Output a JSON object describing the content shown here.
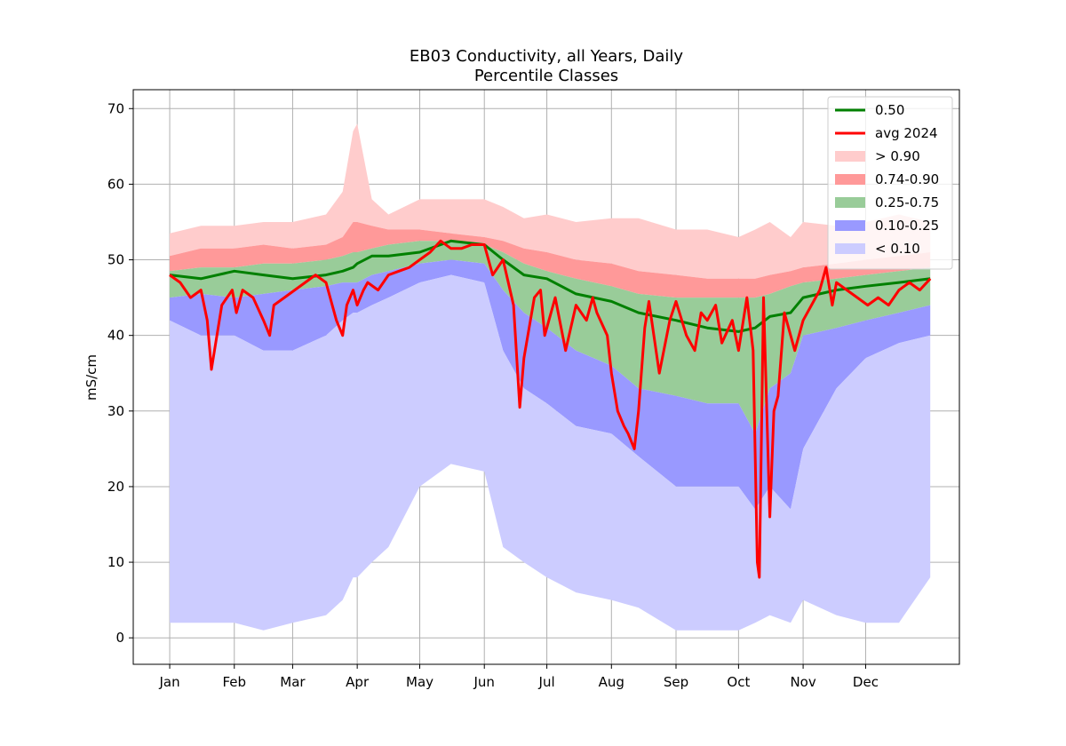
{
  "chart_data": {
    "type": "area",
    "title": "EB03 Conductivity, all Years, Daily",
    "subtitle": "Percentile Classes",
    "xlabel": "",
    "ylabel": "mS/cm",
    "grid": true,
    "legend_position": "top-right",
    "ylim": [
      -3.5,
      72.5
    ],
    "yticks": [
      0,
      10,
      20,
      30,
      40,
      50,
      60,
      70
    ],
    "xlim": [
      -17.5,
      379
    ],
    "month_ticks": [
      {
        "day": 0,
        "label": "Jan"
      },
      {
        "day": 31,
        "label": "Feb"
      },
      {
        "day": 59,
        "label": "Mar"
      },
      {
        "day": 90,
        "label": "Apr"
      },
      {
        "day": 120,
        "label": "May"
      },
      {
        "day": 151,
        "label": "Jun"
      },
      {
        "day": 181,
        "label": "Jul"
      },
      {
        "day": 212,
        "label": "Aug"
      },
      {
        "day": 243,
        "label": "Sep"
      },
      {
        "day": 273,
        "label": "Oct"
      },
      {
        "day": 304,
        "label": "Nov"
      },
      {
        "day": 334,
        "label": "Dec"
      }
    ],
    "x_day_of_year": [
      0,
      15,
      31,
      45,
      59,
      75,
      83,
      88,
      90,
      97,
      105,
      120,
      135,
      151,
      160,
      170,
      181,
      195,
      212,
      225,
      243,
      258,
      273,
      281,
      288,
      298,
      304,
      320,
      334,
      350,
      365
    ],
    "bands": [
      {
        "name": "> 0.90",
        "color": "#ffcccc",
        "lower": [
          50.5,
          51.5,
          51.5,
          52,
          51.5,
          52,
          53,
          55,
          55,
          54.5,
          54,
          54,
          53.5,
          53,
          52.5,
          51.5,
          51,
          50,
          49.5,
          48.5,
          48,
          47.5,
          47.5,
          47.5,
          48,
          48.5,
          49,
          49.5,
          50,
          50.5,
          51
        ],
        "upper": [
          53.5,
          54.5,
          54.5,
          55,
          55,
          56,
          59,
          67,
          68,
          58,
          56,
          58,
          58,
          58,
          57,
          55.5,
          56,
          55,
          55.5,
          55.5,
          54,
          54,
          53,
          54,
          55,
          53,
          55,
          54.5,
          55,
          56,
          55
        ]
      },
      {
        "name": "0.74-0.90",
        "color": "#ff9999",
        "lower": [
          48.5,
          49,
          49,
          49.5,
          49.5,
          50,
          50.5,
          51,
          51,
          51.5,
          52,
          52.5,
          52.5,
          52,
          51,
          49.5,
          48.5,
          47.5,
          46.5,
          45.5,
          45,
          45,
          45,
          45,
          45.5,
          46.5,
          47,
          47.5,
          48,
          48.5,
          49
        ],
        "upper": [
          50.5,
          51.5,
          51.5,
          52,
          51.5,
          52,
          53,
          55,
          55,
          54.5,
          54,
          54,
          53.5,
          53,
          52.5,
          51.5,
          51,
          50,
          49.5,
          48.5,
          48,
          47.5,
          47.5,
          47.5,
          48,
          48.5,
          49,
          49.5,
          50,
          50.5,
          51
        ]
      },
      {
        "name": "0.25-0.75",
        "color": "#99cc99",
        "lower": [
          45,
          45.5,
          45,
          45.5,
          46,
          46.5,
          47,
          47,
          47,
          48,
          48.5,
          49.5,
          50,
          49.5,
          46,
          43,
          41,
          38,
          36,
          33,
          32,
          31,
          31,
          27,
          33,
          35,
          40,
          41,
          42,
          43,
          44
        ],
        "upper": [
          48.5,
          49,
          49,
          49.5,
          49.5,
          50,
          50.5,
          51,
          51,
          51.5,
          52,
          52.5,
          52.5,
          52,
          51,
          49.5,
          48.5,
          47.5,
          46.5,
          45.5,
          45,
          45,
          45,
          45,
          45.5,
          46.5,
          47,
          47.5,
          48,
          48.5,
          49
        ]
      },
      {
        "name": "0.10-0.25",
        "color": "#9999ff",
        "lower": [
          42,
          40,
          40,
          38,
          38,
          40,
          42,
          43,
          43,
          44,
          45,
          47,
          48,
          47,
          38,
          33,
          31,
          28,
          27,
          24,
          20,
          20,
          20,
          17,
          20,
          17,
          25,
          33,
          37,
          39,
          40
        ],
        "upper": [
          45,
          45.5,
          45,
          45.5,
          46,
          46.5,
          47,
          47,
          47,
          48,
          48.5,
          49.5,
          50,
          49.5,
          46,
          43,
          41,
          38,
          36,
          33,
          32,
          31,
          31,
          27,
          33,
          35,
          40,
          41,
          42,
          43,
          44
        ]
      },
      {
        "name": "< 0.10",
        "color": "#ccccff",
        "lower": [
          2,
          2,
          2,
          1,
          2,
          3,
          5,
          8,
          8,
          10,
          12,
          20,
          23,
          22,
          12,
          10,
          8,
          6,
          5,
          4,
          1,
          1,
          1,
          2,
          3,
          2,
          5,
          3,
          2,
          2,
          8
        ],
        "upper": [
          42,
          40,
          40,
          38,
          38,
          40,
          42,
          43,
          43,
          44,
          45,
          47,
          48,
          47,
          38,
          33,
          31,
          28,
          27,
          24,
          20,
          20,
          20,
          17,
          20,
          17,
          25,
          33,
          37,
          39,
          40
        ]
      }
    ],
    "series": [
      {
        "name": "0.50",
        "color": "#008000",
        "values": [
          48,
          47.5,
          48.5,
          48,
          47.5,
          48,
          48.5,
          49,
          49.5,
          50.5,
          50.5,
          51,
          52.5,
          52,
          50,
          48,
          47.5,
          45.5,
          44.5,
          43,
          42,
          41,
          40.5,
          41,
          42.5,
          43,
          45,
          46,
          46.5,
          47,
          47.5
        ]
      },
      {
        "name": "avg 2024",
        "color": "#ff0000",
        "x": [
          0,
          5,
          10,
          15,
          18,
          20,
          25,
          30,
          32,
          35,
          40,
          45,
          48,
          50,
          55,
          60,
          65,
          70,
          75,
          80,
          83,
          85,
          88,
          90,
          93,
          95,
          100,
          105,
          110,
          115,
          120,
          125,
          130,
          135,
          140,
          145,
          151,
          155,
          160,
          165,
          168,
          170,
          175,
          178,
          180,
          185,
          190,
          195,
          200,
          203,
          205,
          210,
          212,
          215,
          218,
          220,
          223,
          225,
          228,
          230,
          235,
          240,
          243,
          248,
          252,
          255,
          258,
          262,
          265,
          270,
          273,
          277,
          280,
          282,
          283,
          285,
          288,
          290,
          292,
          295,
          300,
          304,
          308,
          312,
          315,
          318,
          320,
          325,
          330,
          335,
          340,
          345,
          350,
          355,
          360,
          365
        ],
        "values": [
          48,
          47,
          45,
          46,
          42,
          35.5,
          44,
          46,
          43,
          46,
          45,
          42,
          40,
          44,
          45,
          46,
          47,
          48,
          47,
          42,
          40,
          44,
          46,
          44,
          46,
          47,
          46,
          48,
          48.5,
          49,
          50,
          51,
          52.5,
          51.5,
          51.5,
          52,
          52,
          48,
          50,
          44,
          30.5,
          37,
          45,
          46,
          40,
          45,
          38,
          44,
          42,
          45,
          43,
          40,
          35,
          30,
          28,
          27,
          25,
          30,
          41,
          44.5,
          35,
          42,
          44.5,
          40,
          38,
          43,
          42,
          44,
          39,
          42,
          38,
          45,
          38,
          10,
          8,
          45,
          16,
          30,
          32,
          43,
          38,
          42,
          44,
          46,
          49,
          44,
          47,
          46,
          45,
          44,
          45,
          44,
          46,
          47,
          46,
          47.5
        ]
      }
    ]
  }
}
